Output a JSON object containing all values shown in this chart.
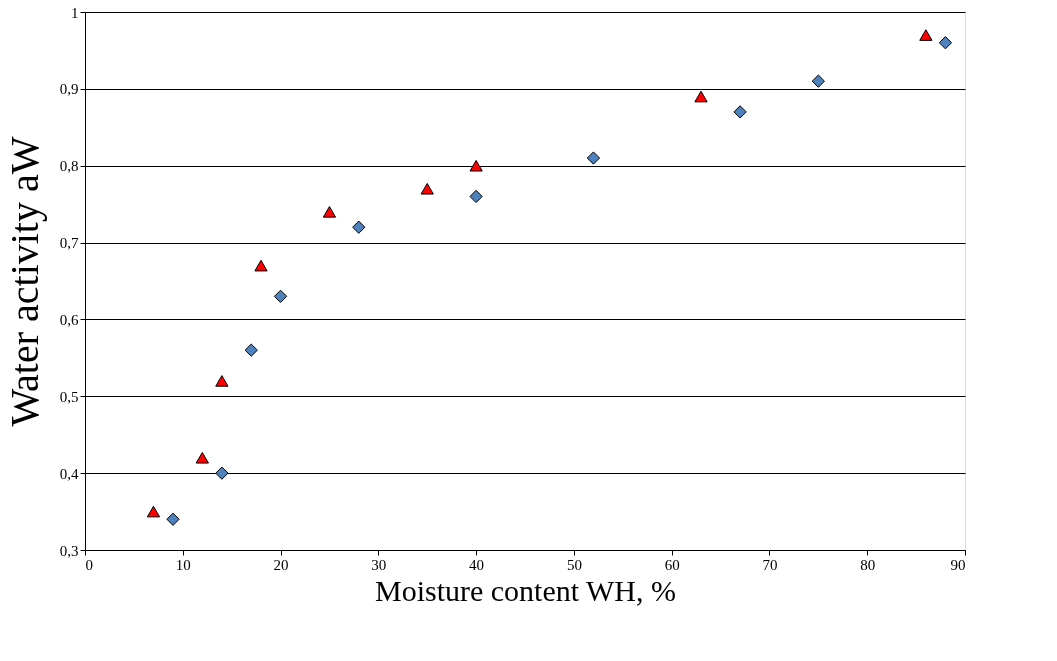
{
  "chart_data": {
    "type": "scatter",
    "xlabel": "Moisture content WH, %",
    "ylabel": "Water activity  aW",
    "xlim": [
      0,
      90
    ],
    "xticks": [
      0,
      10,
      20,
      30,
      40,
      50,
      60,
      70,
      80,
      90
    ],
    "ylim": [
      0.3,
      1
    ],
    "yticks": [
      {
        "value": 0.3,
        "label": "0,3"
      },
      {
        "value": 0.4,
        "label": "0,4"
      },
      {
        "value": 0.5,
        "label": "0,5"
      },
      {
        "value": 0.6,
        "label": "0,6"
      },
      {
        "value": 0.7,
        "label": "0,7"
      },
      {
        "value": 0.8,
        "label": "0,8"
      },
      {
        "value": 0.9,
        "label": "0,9"
      },
      {
        "value": 1,
        "label": "1"
      }
    ],
    "grid": "y",
    "series": [
      {
        "color": "#4f81bd",
        "marker": "diamond",
        "x": [
          9,
          14,
          17,
          20,
          28,
          40,
          52,
          67,
          75,
          88
        ],
        "values": [
          0.34,
          0.4,
          0.56,
          0.63,
          0.72,
          0.76,
          0.81,
          0.87,
          0.91,
          0.96
        ]
      },
      {
        "color": "#ff0000",
        "marker": "triangle",
        "x": [
          7,
          12,
          14,
          18,
          25,
          35,
          40,
          63,
          86
        ],
        "values": [
          0.35,
          0.42,
          0.52,
          0.67,
          0.74,
          0.77,
          0.8,
          0.89,
          0.97
        ]
      }
    ]
  }
}
